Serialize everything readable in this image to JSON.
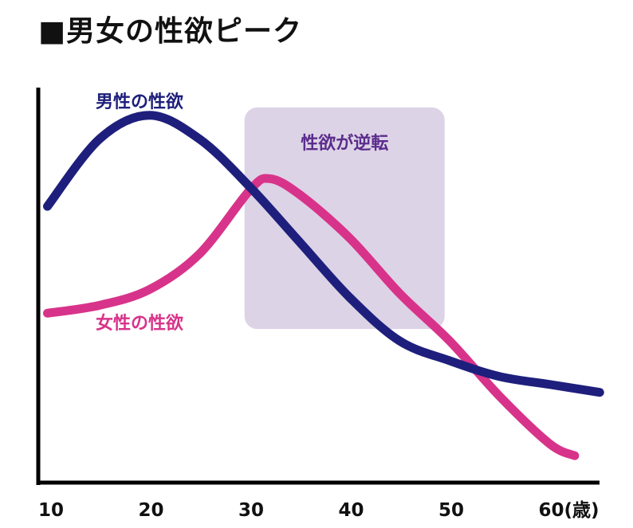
{
  "chart_data": {
    "type": "line",
    "title": "■男女の性欲ピーク",
    "xlabel": "",
    "ylabel": "",
    "xlim": [
      9,
      66
    ],
    "ylim": [
      0,
      100
    ],
    "x_ticks": [
      {
        "value": 10,
        "label": "10"
      },
      {
        "value": 20,
        "label": "20"
      },
      {
        "value": 30,
        "label": "30"
      },
      {
        "value": 40,
        "label": "40"
      },
      {
        "value": 50,
        "label": "50"
      },
      {
        "value": 60,
        "label": "60(歳)"
      }
    ],
    "grid": false,
    "series": [
      {
        "name": "男性の性欲",
        "color": "#1e1f7c",
        "x": [
          9.8,
          15,
          20,
          25,
          30,
          35,
          40,
          45,
          50,
          55,
          60,
          65
        ],
        "y": [
          70,
          87,
          93,
          87,
          75,
          61,
          47,
          36,
          31,
          27,
          25,
          23
        ]
      },
      {
        "name": "女性の性欲",
        "color": "#d8338a",
        "x": [
          9.8,
          15,
          20,
          25,
          30,
          32,
          35,
          40,
          45,
          50,
          55,
          60,
          62.5
        ],
        "y": [
          43,
          45,
          49,
          58,
          74,
          77,
          73,
          62,
          48,
          36,
          22,
          10,
          7
        ]
      }
    ],
    "annotations": [
      {
        "text": "性欲が逆転",
        "x_range": [
          29.5,
          49.5
        ],
        "y_range": [
          39,
          95
        ],
        "fill": "#ddd3e6",
        "text_color": "#5b2d8c"
      }
    ]
  }
}
